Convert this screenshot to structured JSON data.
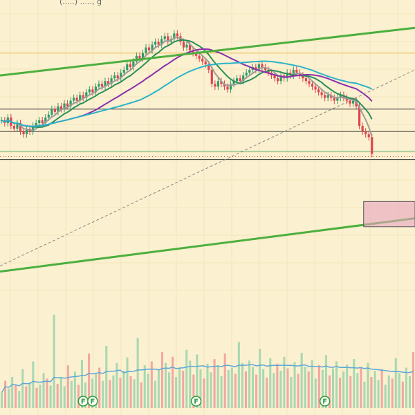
{
  "header": {
    "partial_label": "(.....) ....., g"
  },
  "colors": {
    "background": "#fbf0cf",
    "grid": "#f3e6bd",
    "candle_up": "#2e9b6b",
    "candle_down": "#e0434f",
    "vol_up": "#a8d8b4",
    "vol_down": "#f2a7a2",
    "ma_fast": "#9c9c9c",
    "ma_mid": "#2a8f5c",
    "ma_long": "#8a2fae",
    "ma_200": "#2ab3c8",
    "channel": "#4caf3f",
    "level": "#333333",
    "gold_level": "#e8b84a",
    "zone_fill": "#e8a4c0",
    "volume_ma": "#5da8d8",
    "marker": "#2e9b3a"
  },
  "chart_data": {
    "type": "candlestick",
    "title": "",
    "xlabel": "",
    "ylabel": "",
    "ylim": [
      0,
      100
    ],
    "grid": true,
    "price_closes": [
      62,
      61,
      63,
      60,
      59,
      61,
      58,
      57,
      59,
      58,
      60,
      61,
      62,
      61,
      63,
      64,
      66,
      65,
      67,
      66,
      68,
      67,
      69,
      70,
      69,
      71,
      70,
      72,
      73,
      72,
      74,
      75,
      74,
      76,
      75,
      77,
      78,
      77,
      79,
      80,
      82,
      81,
      83,
      85,
      84,
      86,
      88,
      87,
      89,
      90,
      89,
      91,
      92,
      90,
      91,
      93,
      92,
      90,
      88,
      89,
      87,
      86,
      85,
      84,
      83,
      82,
      80,
      75,
      74,
      76,
      75,
      74,
      73,
      75,
      76,
      77,
      76,
      78,
      79,
      80,
      81,
      80,
      82,
      81,
      80,
      79,
      78,
      77,
      76,
      78,
      77,
      79,
      78,
      80,
      79,
      78,
      77,
      76,
      75,
      74,
      73,
      72,
      71,
      70,
      71,
      70,
      69,
      70,
      71,
      70,
      69,
      68,
      69,
      67,
      60,
      58,
      57,
      56,
      50
    ],
    "reference_levels": [
      86,
      66,
      58,
      51,
      48
    ],
    "markers": [
      {
        "label": "F",
        "index": 26
      },
      {
        "label": "F",
        "index": 29
      },
      {
        "label": "F",
        "index": 62
      },
      {
        "label": "F",
        "index": 103
      }
    ],
    "volume": [
      20,
      35,
      25,
      40,
      30,
      22,
      50,
      28,
      33,
      60,
      26,
      30,
      45,
      38,
      29,
      120,
      31,
      40,
      28,
      55,
      35,
      47,
      30,
      62,
      33,
      70,
      38,
      44,
      52,
      35,
      80,
      36,
      42,
      58,
      39,
      48,
      65,
      41,
      37,
      90,
      33,
      55,
      44,
      60,
      35,
      49,
      72,
      58,
      46,
      66,
      40,
      52,
      48,
      75,
      61,
      43,
      69,
      50,
      38,
      57,
      46,
      63,
      55,
      41,
      70,
      49,
      52,
      44,
      85,
      58,
      47,
      61,
      53,
      43,
      76,
      50,
      39,
      64,
      45,
      57,
      48,
      66,
      51,
      40,
      59,
      44,
      71,
      53,
      47,
      62,
      38,
      55,
      49,
      68,
      42,
      51,
      60,
      39,
      47,
      56,
      41,
      63,
      45,
      52,
      34,
      58,
      40,
      48,
      36,
      50,
      30,
      42,
      38,
      64,
      45,
      34,
      52,
      41,
      72
    ]
  }
}
